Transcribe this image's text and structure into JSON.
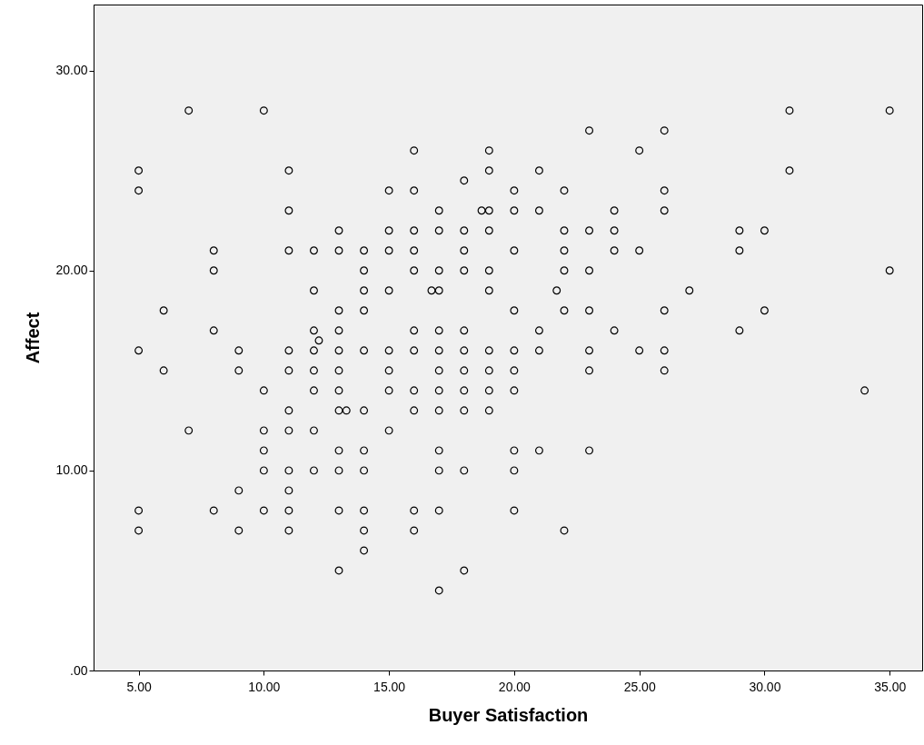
{
  "chart_data": {
    "type": "scatter",
    "xlabel": "Buyer Satisfaction",
    "ylabel": "Affect",
    "marker": "circle",
    "grid": false,
    "xlim": [
      3.2,
      36.3
    ],
    "ylim": [
      0,
      33.3
    ],
    "xticks": [
      {
        "value": 5,
        "label": "5.00"
      },
      {
        "value": 10,
        "label": "10.00"
      },
      {
        "value": 15,
        "label": "15.00"
      },
      {
        "value": 20,
        "label": "20.00"
      },
      {
        "value": 25,
        "label": "25.00"
      },
      {
        "value": 30,
        "label": "30.00"
      },
      {
        "value": 35,
        "label": "35.00"
      }
    ],
    "yticks": [
      {
        "value": 0,
        "label": ".00"
      },
      {
        "value": 10,
        "label": "10.00"
      },
      {
        "value": 20,
        "label": "20.00"
      },
      {
        "value": 30,
        "label": "30.00"
      }
    ],
    "series": [
      {
        "color": "#000000",
        "x": [
          5,
          5,
          5,
          5,
          5,
          6,
          6,
          7,
          7,
          8,
          8,
          8,
          8,
          9,
          9,
          9,
          9,
          10,
          10,
          10,
          10,
          10,
          10,
          11,
          11,
          11,
          11,
          11,
          11,
          11,
          11,
          11,
          11,
          11,
          12,
          12,
          12,
          12,
          12,
          12,
          12,
          12,
          12.2,
          13,
          13,
          13,
          13,
          13,
          13,
          13,
          13,
          13,
          13,
          13,
          13,
          13.3,
          14,
          14,
          14,
          14,
          14,
          14,
          14,
          14,
          14,
          14,
          14,
          15,
          15,
          15,
          15,
          15,
          15,
          15,
          15,
          16,
          16,
          16,
          16,
          16,
          16,
          16,
          16,
          16,
          16,
          16,
          16.7,
          17,
          17,
          17,
          17,
          17,
          17,
          17,
          17,
          17,
          17,
          17,
          17,
          17,
          18,
          18,
          18,
          18,
          18,
          18,
          18,
          18,
          18,
          18,
          18,
          18.7,
          19,
          19,
          19,
          19,
          19,
          19,
          19,
          19,
          19,
          19,
          20,
          20,
          20,
          20,
          20,
          20,
          20,
          20,
          20,
          20,
          21,
          21,
          21,
          21,
          21,
          21.7,
          22,
          22,
          22,
          22,
          22,
          22,
          23,
          23,
          23,
          23,
          23,
          23,
          23,
          24,
          24,
          24,
          24,
          25,
          25,
          25,
          26,
          26,
          26,
          26,
          26,
          26,
          27,
          29,
          29,
          29,
          30,
          30,
          31,
          31,
          34,
          35,
          35
        ],
        "values": [
          25,
          24,
          16,
          8,
          7,
          18,
          15,
          28,
          12,
          21,
          20,
          17,
          8,
          16,
          15,
          9,
          7,
          28,
          14,
          12,
          11,
          10,
          8,
          25,
          23,
          21,
          16,
          15,
          13,
          12,
          10,
          9,
          8,
          7,
          21,
          19,
          17,
          16,
          15,
          14,
          12,
          10,
          16.5,
          22,
          21,
          18,
          17,
          16,
          15,
          14,
          13,
          11,
          10,
          8,
          5,
          13,
          21,
          20,
          19,
          18,
          16,
          13,
          11,
          10,
          8,
          7,
          6,
          24,
          22,
          21,
          19,
          16,
          15,
          14,
          12,
          26,
          24,
          22,
          21,
          20,
          17,
          16,
          14,
          13,
          8,
          7,
          19,
          23,
          22,
          20,
          19,
          17,
          16,
          15,
          14,
          13,
          11,
          10,
          8,
          4,
          24.5,
          22,
          21,
          20,
          17,
          16,
          15,
          14,
          13,
          10,
          5,
          23,
          26,
          25,
          23,
          22,
          20,
          19,
          16,
          15,
          14,
          13,
          24,
          23,
          21,
          18,
          16,
          15,
          14,
          11,
          10,
          8,
          25,
          23,
          17,
          16,
          11,
          19,
          24,
          22,
          21,
          20,
          18,
          7,
          27,
          22,
          20,
          18,
          16,
          15,
          11,
          23,
          22,
          21,
          17,
          26,
          21,
          16,
          27,
          24,
          23,
          18,
          16,
          15,
          19,
          22,
          21,
          17,
          22,
          18,
          28,
          25,
          14,
          28,
          20
        ]
      }
    ]
  }
}
